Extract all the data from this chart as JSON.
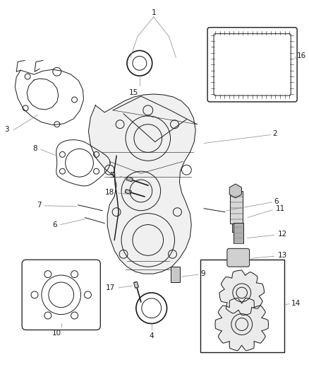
{
  "background_color": "#ffffff",
  "line_color": "#1a1a1a",
  "label_color": "#1a1a1a",
  "leader_color": "#888888",
  "label_fontsize": 7.5,
  "fig_width": 4.38,
  "fig_height": 5.33,
  "dpi": 100
}
